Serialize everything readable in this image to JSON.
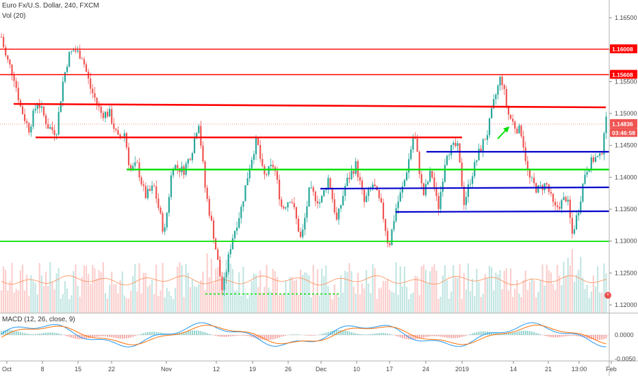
{
  "header": {
    "symbol_line": "Euro Fx/U.S. Dollar, 240, FXCM",
    "volume_label": "Vol (20)",
    "macd_label": "MACD (12, 26, close, 9)"
  },
  "price_axis": {
    "ticks": [
      "1.16500",
      "1.16000",
      "1.15500",
      "1.15000",
      "1.14500",
      "1.14000",
      "1.13500",
      "1.13000",
      "1.12500",
      "1.12000"
    ],
    "tag_upper_resistance": "1.16008",
    "tag_lower_resistance": "1.15608",
    "tag_current_price": "1.14836",
    "tag_countdown": "03:46:58"
  },
  "macd_axis": {
    "zero_label": "0.0000",
    "bottom_label": "-0.0050"
  },
  "time_axis": {
    "labels": [
      "Oct",
      "8",
      "15",
      "22",
      "Nov",
      "12",
      "19",
      "26",
      "Dec",
      "10",
      "17",
      "24",
      "2019",
      "14",
      "21",
      "13:00",
      "Feb"
    ]
  },
  "colors": {
    "up_candle": "#26a69a",
    "down_candle": "#ef5350",
    "resistance_line": "#ff0000",
    "support_line": "#00e000",
    "channel_line": "#0000cc",
    "macd_line": "#2196f3",
    "signal_line": "#ff6d00",
    "current_price_tag": "#ef5350"
  },
  "icons": {
    "alert": "alarm-clock-icon"
  }
}
